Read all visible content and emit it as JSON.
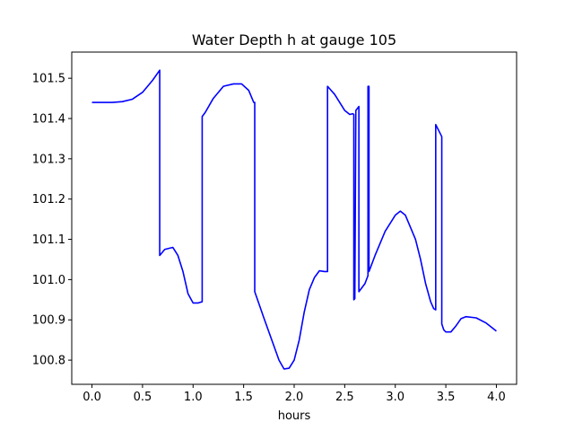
{
  "chart_data": {
    "type": "line",
    "title": "Water Depth h at gauge 105",
    "xlabel": "hours",
    "ylabel": "",
    "xlim": [
      -0.2,
      4.2
    ],
    "ylim": [
      100.74,
      101.565
    ],
    "xticks": [
      0.0,
      0.5,
      1.0,
      1.5,
      2.0,
      2.5,
      3.0,
      3.5,
      4.0
    ],
    "xtick_labels": [
      "0.0",
      "0.5",
      "1.0",
      "1.5",
      "2.0",
      "2.5",
      "3.0",
      "3.5",
      "4.0"
    ],
    "yticks": [
      100.8,
      100.9,
      101.0,
      101.1,
      101.2,
      101.3,
      101.4,
      101.5
    ],
    "ytick_labels": [
      "100.8",
      "100.9",
      "101.0",
      "101.1",
      "101.2",
      "101.3",
      "101.4",
      "101.5"
    ],
    "grid": false,
    "series": [
      {
        "color": "#0000ff",
        "x": [
          0.0,
          0.1,
          0.2,
          0.3,
          0.4,
          0.5,
          0.6,
          0.67,
          0.67,
          0.72,
          0.8,
          0.85,
          0.9,
          0.95,
          1.0,
          1.05,
          1.09,
          1.09,
          1.12,
          1.2,
          1.3,
          1.4,
          1.48,
          1.55,
          1.6,
          1.61,
          1.61,
          1.7,
          1.8,
          1.85,
          1.9,
          1.95,
          2.0,
          2.05,
          2.1,
          2.15,
          2.2,
          2.25,
          2.3,
          2.33,
          2.33,
          2.4,
          2.5,
          2.55,
          2.58,
          2.59,
          2.59,
          2.6,
          2.61,
          2.61,
          2.64,
          2.64,
          2.7,
          2.73,
          2.73,
          2.74,
          2.74,
          2.8,
          2.9,
          3.0,
          3.05,
          3.1,
          3.2,
          3.25,
          3.3,
          3.35,
          3.38,
          3.4,
          3.4,
          3.43,
          3.46,
          3.46,
          3.48,
          3.5,
          3.55,
          3.6,
          3.65,
          3.7,
          3.8,
          3.9,
          4.0
        ],
        "y": [
          101.44,
          101.44,
          101.44,
          101.442,
          101.448,
          101.465,
          101.495,
          101.52,
          101.06,
          101.075,
          101.08,
          101.06,
          101.02,
          100.965,
          100.942,
          100.942,
          100.945,
          101.405,
          101.415,
          101.45,
          101.48,
          101.486,
          101.486,
          101.47,
          101.44,
          101.44,
          100.97,
          100.905,
          100.835,
          100.8,
          100.778,
          100.78,
          100.8,
          100.85,
          100.92,
          100.975,
          101.005,
          101.022,
          101.02,
          101.02,
          101.48,
          101.46,
          101.42,
          101.41,
          101.412,
          101.41,
          100.95,
          100.953,
          101.42,
          101.42,
          101.43,
          100.97,
          100.99,
          101.01,
          101.48,
          101.48,
          101.02,
          101.06,
          101.12,
          101.16,
          101.17,
          101.16,
          101.1,
          101.05,
          100.99,
          100.945,
          100.928,
          100.925,
          101.385,
          101.37,
          101.355,
          100.89,
          100.875,
          100.87,
          100.87,
          100.885,
          100.903,
          100.908,
          100.905,
          100.892,
          100.872
        ]
      }
    ]
  }
}
